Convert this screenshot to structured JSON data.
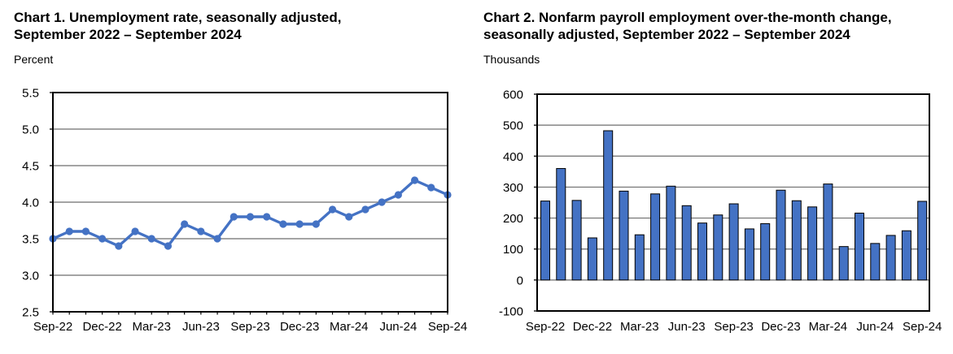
{
  "chart_data": [
    {
      "id": "chart1",
      "type": "line",
      "title": "Chart 1. Unemployment rate, seasonally adjusted,\nSeptember 2022 – September 2024",
      "unit_label": "Percent",
      "x": [
        "Sep-22",
        "Oct-22",
        "Nov-22",
        "Dec-22",
        "Jan-23",
        "Feb-23",
        "Mar-23",
        "Apr-23",
        "May-23",
        "Jun-23",
        "Jul-23",
        "Aug-23",
        "Sep-23",
        "Oct-23",
        "Nov-23",
        "Dec-23",
        "Jan-24",
        "Feb-24",
        "Mar-24",
        "Apr-24",
        "May-24",
        "Jun-24",
        "Jul-24",
        "Aug-24",
        "Sep-24"
      ],
      "values": [
        3.5,
        3.6,
        3.6,
        3.5,
        3.4,
        3.6,
        3.5,
        3.4,
        3.7,
        3.6,
        3.5,
        3.8,
        3.8,
        3.8,
        3.7,
        3.7,
        3.7,
        3.9,
        3.8,
        3.9,
        4.0,
        4.1,
        4.3,
        4.2,
        4.1
      ],
      "ylim": [
        2.5,
        5.5
      ],
      "yticks": [
        5.5,
        5.0,
        4.5,
        4.0,
        3.5,
        3.0,
        2.5
      ],
      "ytick_labels": [
        "5.5",
        "5.0",
        "4.5",
        "4.0",
        "3.5",
        "3.0",
        "2.5"
      ],
      "xtick_labels": [
        "Sep-22",
        "Dec-22",
        "Mar-23",
        "Jun-23",
        "Sep-23",
        "Dec-23",
        "Mar-24",
        "Jun-24",
        "Sep-24"
      ],
      "xtick_every": 3,
      "grid": true,
      "legend": "none",
      "colors": {
        "line": "#4472C4",
        "grid": "#6e6e6e",
        "axis": "#000000"
      }
    },
    {
      "id": "chart2",
      "type": "bar",
      "title": "Chart 2. Nonfarm payroll employment over-the-month change,\nseasonally adjusted, September 2022 – September 2024",
      "unit_label": "Thousands",
      "x": [
        "Sep-22",
        "Oct-22",
        "Nov-22",
        "Dec-22",
        "Jan-23",
        "Feb-23",
        "Mar-23",
        "Apr-23",
        "May-23",
        "Jun-23",
        "Jul-23",
        "Aug-23",
        "Sep-23",
        "Oct-23",
        "Nov-23",
        "Dec-23",
        "Jan-24",
        "Feb-24",
        "Mar-24",
        "Apr-24",
        "May-24",
        "Jun-24",
        "Jul-24",
        "Aug-24",
        "Sep-24"
      ],
      "values": [
        255,
        360,
        257,
        136,
        482,
        287,
        146,
        278,
        303,
        240,
        184,
        210,
        246,
        165,
        182,
        290,
        256,
        236,
        310,
        108,
        216,
        118,
        144,
        159,
        254
      ],
      "ylim": [
        -100,
        600
      ],
      "yticks": [
        600,
        500,
        400,
        300,
        200,
        100,
        0,
        -100
      ],
      "ytick_labels": [
        "600",
        "500",
        "400",
        "300",
        "200",
        "100",
        "0",
        "-100"
      ],
      "xtick_labels": [
        "Sep-22",
        "Dec-22",
        "Mar-23",
        "Jun-23",
        "Sep-23",
        "Dec-23",
        "Mar-24",
        "Jun-24",
        "Sep-24"
      ],
      "xtick_every": 3,
      "grid": true,
      "legend": "none",
      "colors": {
        "bar_fill": "#4472C4",
        "bar_border": "#000000",
        "grid": "#6e6e6e",
        "axis": "#000000"
      }
    }
  ]
}
